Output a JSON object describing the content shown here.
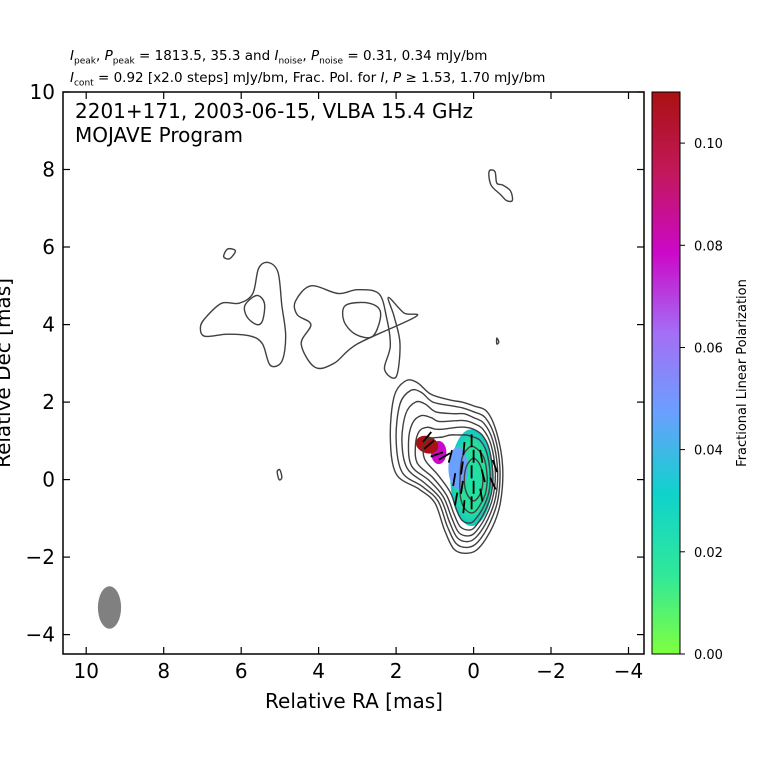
{
  "header": {
    "line1": {
      "i_label": "I",
      "i_sub": "peak",
      "p_label": "P",
      "p_sub": "peak",
      "peak_values": "= 1813.5, 35.3 and",
      "in_label": "I",
      "in_sub": "noise",
      "pn_label": "P",
      "pn_sub": "noise",
      "noise_values": "= 0.31, 0.34 mJy/bm"
    },
    "line2": {
      "ic_label": "I",
      "ic_sub": "cont",
      "cont_text": "= 0.92 [x2.0 steps] mJy/bm, Frac. Pol. for",
      "fi_label": "I",
      "comma": ",",
      "fp_label": "P",
      "threshold": "≥ 1.53, 1.70 mJy/bm"
    }
  },
  "chart_data": {
    "type": "contour",
    "title": "2201+171, 2003-06-15, VLBA 15.4 GHz",
    "subtitle": "MOJAVE Program",
    "xlabel": "Relative RA [mas]",
    "ylabel": "Relative Dec [mas]",
    "xlim": [
      10.6,
      -4.4
    ],
    "ylim": [
      -4.5,
      10.0
    ],
    "x_ticks": [
      10,
      8,
      6,
      4,
      2,
      0,
      -2,
      -4
    ],
    "x_tick_labels": [
      "10",
      "8",
      "6",
      "4",
      "2",
      "0",
      "−2",
      "−4"
    ],
    "y_ticks": [
      -4,
      -2,
      0,
      2,
      4,
      6,
      8,
      10
    ],
    "y_tick_labels": [
      "−4",
      "−2",
      "0",
      "2",
      "4",
      "6",
      "8",
      "10"
    ],
    "beam": {
      "ra": 9.4,
      "dec": -3.3,
      "major": 1.1,
      "minor": 0.6,
      "color": "#808080"
    },
    "contour_color": "#404040",
    "core_contours": [
      [
        [
          0,
          1.9
        ],
        [
          -0.35,
          1.75
        ],
        [
          -0.6,
          1.2
        ],
        [
          -0.75,
          0.35
        ],
        [
          -0.7,
          -0.55
        ],
        [
          -0.5,
          -1.2
        ],
        [
          -0.15,
          -1.75
        ],
        [
          0.15,
          -1.9
        ],
        [
          0.5,
          -1.8
        ],
        [
          0.75,
          -1.3
        ],
        [
          1.0,
          -0.6
        ],
        [
          1.4,
          -0.25
        ],
        [
          2.0,
          0.15
        ],
        [
          2.15,
          1.1
        ],
        [
          2.05,
          2.15
        ],
        [
          1.75,
          2.55
        ],
        [
          1.45,
          2.5
        ],
        [
          1.1,
          2.2
        ],
        [
          0.6,
          2.05
        ],
        [
          0.3,
          2.0
        ]
      ],
      [
        [
          0,
          1.75
        ],
        [
          -0.3,
          1.6
        ],
        [
          -0.55,
          1.1
        ],
        [
          -0.68,
          0.3
        ],
        [
          -0.63,
          -0.5
        ],
        [
          -0.43,
          -1.1
        ],
        [
          -0.12,
          -1.6
        ],
        [
          0.15,
          -1.75
        ],
        [
          0.45,
          -1.65
        ],
        [
          0.68,
          -1.2
        ],
        [
          0.92,
          -0.55
        ],
        [
          1.32,
          -0.18
        ],
        [
          1.85,
          0.2
        ],
        [
          2.0,
          1.05
        ],
        [
          1.9,
          1.95
        ],
        [
          1.62,
          2.3
        ],
        [
          1.35,
          2.25
        ],
        [
          1.05,
          2.0
        ],
        [
          0.55,
          1.9
        ],
        [
          0.28,
          1.85
        ]
      ],
      [
        [
          0,
          1.6
        ],
        [
          -0.27,
          1.45
        ],
        [
          -0.5,
          1.0
        ],
        [
          -0.62,
          0.25
        ],
        [
          -0.57,
          -0.45
        ],
        [
          -0.38,
          -1.0
        ],
        [
          -0.1,
          -1.45
        ],
        [
          0.14,
          -1.6
        ],
        [
          0.42,
          -1.5
        ],
        [
          0.62,
          -1.1
        ],
        [
          0.85,
          -0.5
        ],
        [
          1.25,
          -0.1
        ],
        [
          1.72,
          0.3
        ],
        [
          1.85,
          1.0
        ],
        [
          1.75,
          1.7
        ],
        [
          1.5,
          2.0
        ],
        [
          1.25,
          1.95
        ],
        [
          0.98,
          1.75
        ],
        [
          0.5,
          1.7
        ],
        [
          0.25,
          1.7
        ]
      ],
      [
        [
          0,
          1.45
        ],
        [
          -0.24,
          1.3
        ],
        [
          -0.45,
          0.9
        ],
        [
          -0.56,
          0.2
        ],
        [
          -0.51,
          -0.4
        ],
        [
          -0.34,
          -0.9
        ],
        [
          -0.08,
          -1.32
        ],
        [
          0.12,
          -1.45
        ],
        [
          0.38,
          -1.37
        ],
        [
          0.56,
          -1.0
        ],
        [
          0.78,
          -0.45
        ],
        [
          1.15,
          -0.02
        ],
        [
          1.6,
          0.35
        ],
        [
          1.68,
          0.95
        ],
        [
          1.58,
          1.45
        ],
        [
          1.35,
          1.65
        ],
        [
          1.1,
          1.6
        ],
        [
          0.9,
          1.5
        ],
        [
          0.45,
          1.52
        ],
        [
          0.22,
          1.52
        ]
      ],
      [
        [
          0,
          1.3
        ],
        [
          -0.22,
          1.15
        ],
        [
          -0.4,
          0.8
        ],
        [
          -0.5,
          0.15
        ],
        [
          -0.46,
          -0.35
        ],
        [
          -0.3,
          -0.8
        ],
        [
          -0.07,
          -1.18
        ],
        [
          0.1,
          -1.3
        ],
        [
          0.34,
          -1.22
        ],
        [
          0.5,
          -0.9
        ],
        [
          0.7,
          -0.4
        ],
        [
          1.05,
          0.05
        ],
        [
          1.45,
          0.42
        ],
        [
          1.5,
          0.9
        ],
        [
          1.4,
          1.25
        ],
        [
          1.2,
          1.35
        ],
        [
          0.98,
          1.3
        ],
        [
          0.8,
          1.3
        ],
        [
          0.42,
          1.35
        ],
        [
          0.2,
          1.35
        ]
      ],
      [
        [
          0,
          1.1
        ],
        [
          -0.18,
          1.0
        ],
        [
          -0.34,
          0.7
        ],
        [
          -0.43,
          0.12
        ],
        [
          -0.4,
          -0.3
        ],
        [
          -0.26,
          -0.7
        ],
        [
          -0.05,
          -1.02
        ],
        [
          0.09,
          -1.12
        ],
        [
          0.3,
          -1.05
        ],
        [
          0.44,
          -0.78
        ],
        [
          0.6,
          -0.33
        ],
        [
          0.92,
          0.12
        ],
        [
          1.25,
          0.5
        ],
        [
          1.3,
          0.85
        ],
        [
          1.2,
          1.05
        ],
        [
          1.0,
          1.08
        ],
        [
          0.8,
          1.1
        ],
        [
          0.6,
          1.15
        ],
        [
          0.35,
          1.15
        ],
        [
          0.18,
          1.15
        ]
      ],
      [
        [
          0,
          0.85
        ],
        [
          -0.25,
          0.6
        ],
        [
          -0.35,
          0.1
        ],
        [
          -0.32,
          -0.3
        ],
        [
          -0.2,
          -0.6
        ],
        [
          0,
          -0.85
        ],
        [
          0.2,
          -0.78
        ],
        [
          0.33,
          -0.5
        ],
        [
          0.35,
          0.0
        ],
        [
          0.3,
          0.55
        ],
        [
          0.15,
          0.8
        ]
      ],
      [
        [
          0,
          0.55
        ],
        [
          -0.18,
          0.35
        ],
        [
          -0.24,
          0.0
        ],
        [
          -0.18,
          -0.35
        ],
        [
          0,
          -0.55
        ],
        [
          0.18,
          -0.35
        ],
        [
          0.24,
          0.0
        ],
        [
          0.18,
          0.35
        ]
      ]
    ],
    "jet_contours": [
      [
        [
          6.9,
          4.2
        ],
        [
          6.5,
          4.55
        ],
        [
          6.05,
          4.55
        ],
        [
          5.7,
          4.8
        ],
        [
          5.55,
          5.45
        ],
        [
          5.3,
          5.6
        ],
        [
          5.05,
          5.35
        ],
        [
          4.95,
          4.5
        ],
        [
          4.85,
          3.7
        ],
        [
          4.95,
          3.05
        ],
        [
          5.25,
          2.95
        ],
        [
          5.45,
          3.5
        ],
        [
          5.75,
          3.7
        ],
        [
          6.35,
          3.75
        ],
        [
          6.95,
          3.7
        ],
        [
          7.05,
          3.95
        ]
      ],
      [
        [
          5.9,
          4.5
        ],
        [
          5.6,
          4.75
        ],
        [
          5.4,
          4.55
        ],
        [
          5.45,
          4.1
        ],
        [
          5.6,
          4.0
        ],
        [
          5.85,
          4.2
        ]
      ],
      [
        [
          6.3,
          5.7
        ],
        [
          6.15,
          5.9
        ],
        [
          6.35,
          5.95
        ],
        [
          6.45,
          5.75
        ]
      ],
      [
        [
          4.6,
          4.6
        ],
        [
          4.2,
          5.0
        ],
        [
          3.5,
          4.8
        ],
        [
          3.0,
          4.9
        ],
        [
          2.45,
          4.8
        ],
        [
          2.25,
          4.2
        ],
        [
          2.15,
          3.45
        ],
        [
          2.3,
          2.85
        ],
        [
          2.0,
          2.65
        ],
        [
          1.9,
          3.5
        ],
        [
          2.05,
          4.2
        ],
        [
          2.2,
          4.7
        ],
        [
          1.8,
          4.3
        ],
        [
          1.5,
          4.2
        ],
        [
          3.0,
          3.5
        ],
        [
          3.6,
          3.0
        ],
        [
          4.1,
          2.9
        ],
        [
          4.45,
          3.5
        ],
        [
          4.2,
          4.0
        ],
        [
          4.55,
          4.25
        ]
      ],
      [
        [
          3.3,
          4.5
        ],
        [
          2.7,
          4.55
        ],
        [
          2.4,
          4.3
        ],
        [
          2.6,
          3.7
        ],
        [
          3.05,
          3.75
        ],
        [
          3.35,
          4.1
        ]
      ],
      [
        [
          -0.55,
          7.95
        ],
        [
          -0.6,
          7.65
        ],
        [
          -0.75,
          7.6
        ],
        [
          -0.95,
          7.45
        ],
        [
          -1.0,
          7.2
        ],
        [
          -0.85,
          7.2
        ],
        [
          -0.7,
          7.35
        ],
        [
          -0.45,
          7.6
        ],
        [
          -0.4,
          7.95
        ]
      ],
      [
        [
          5.0,
          0.25
        ],
        [
          4.95,
          0.05
        ],
        [
          5.02,
          0.0
        ],
        [
          5.07,
          0.2
        ]
      ],
      [
        [
          -0.6,
          3.65
        ],
        [
          -0.65,
          3.55
        ],
        [
          -0.6,
          3.5
        ]
      ]
    ],
    "polarization_regions": [
      {
        "region": "core",
        "ra": 0.05,
        "dec": 0.05,
        "frac_pol": 0.025
      },
      {
        "region": "core-edge",
        "ra": 0.4,
        "dec": 0.3,
        "frac_pol": 0.045
      },
      {
        "region": "inner-jet",
        "ra": 0.9,
        "dec": 0.7,
        "frac_pol": 0.08
      },
      {
        "region": "inner-jet-tip",
        "ra": 1.2,
        "dec": 0.9,
        "frac_pol": 0.11
      }
    ],
    "evpa_ticks": [
      {
        "ra": 0.05,
        "dec": 1.0,
        "angle_deg": 0
      },
      {
        "ra": 0.0,
        "dec": 0.6,
        "angle_deg": 0
      },
      {
        "ra": 0.05,
        "dec": 0.2,
        "angle_deg": 0
      },
      {
        "ra": 0.0,
        "dec": -0.2,
        "angle_deg": 0
      },
      {
        "ra": 0.05,
        "dec": -0.6,
        "angle_deg": 0
      },
      {
        "ra": 0.25,
        "dec": 0.8,
        "angle_deg": 5
      },
      {
        "ra": 0.3,
        "dec": 0.3,
        "angle_deg": 8
      },
      {
        "ra": 0.3,
        "dec": -0.2,
        "angle_deg": 8
      },
      {
        "ra": 0.25,
        "dec": -0.7,
        "angle_deg": 5
      },
      {
        "ra": -0.2,
        "dec": 0.6,
        "angle_deg": -10
      },
      {
        "ra": -0.25,
        "dec": 0.1,
        "angle_deg": -15
      },
      {
        "ra": -0.2,
        "dec": -0.4,
        "angle_deg": -10
      },
      {
        "ra": 0.5,
        "dec": 0.0,
        "angle_deg": 10
      },
      {
        "ra": 0.45,
        "dec": -0.5,
        "angle_deg": 10
      },
      {
        "ra": 0.6,
        "dec": 0.6,
        "angle_deg": 15
      },
      {
        "ra": -0.5,
        "dec": -0.1,
        "angle_deg": -25
      },
      {
        "ra": -0.55,
        "dec": 0.35,
        "angle_deg": -20
      },
      {
        "ra": 0.75,
        "dec": 0.6,
        "angle_deg": 60
      },
      {
        "ra": 0.95,
        "dec": 0.65,
        "angle_deg": 70
      },
      {
        "ra": 1.15,
        "dec": 0.9,
        "angle_deg": 50
      },
      {
        "ra": 1.2,
        "dec": 1.1,
        "angle_deg": 40
      }
    ],
    "colorbar": {
      "label": "Fractional Linear Polarization",
      "min": 0.0,
      "max": 0.11,
      "ticks": [
        0.0,
        0.02,
        0.04,
        0.06,
        0.08,
        0.1
      ],
      "tick_labels": [
        "0.00",
        "0.02",
        "0.04",
        "0.06",
        "0.08",
        "0.10"
      ],
      "colors": [
        "#7fff3f",
        "#2fe89a",
        "#0fd2cc",
        "#6aa0ff",
        "#a46ef5",
        "#cc08c8",
        "#c2185b",
        "#aa1111"
      ]
    }
  }
}
